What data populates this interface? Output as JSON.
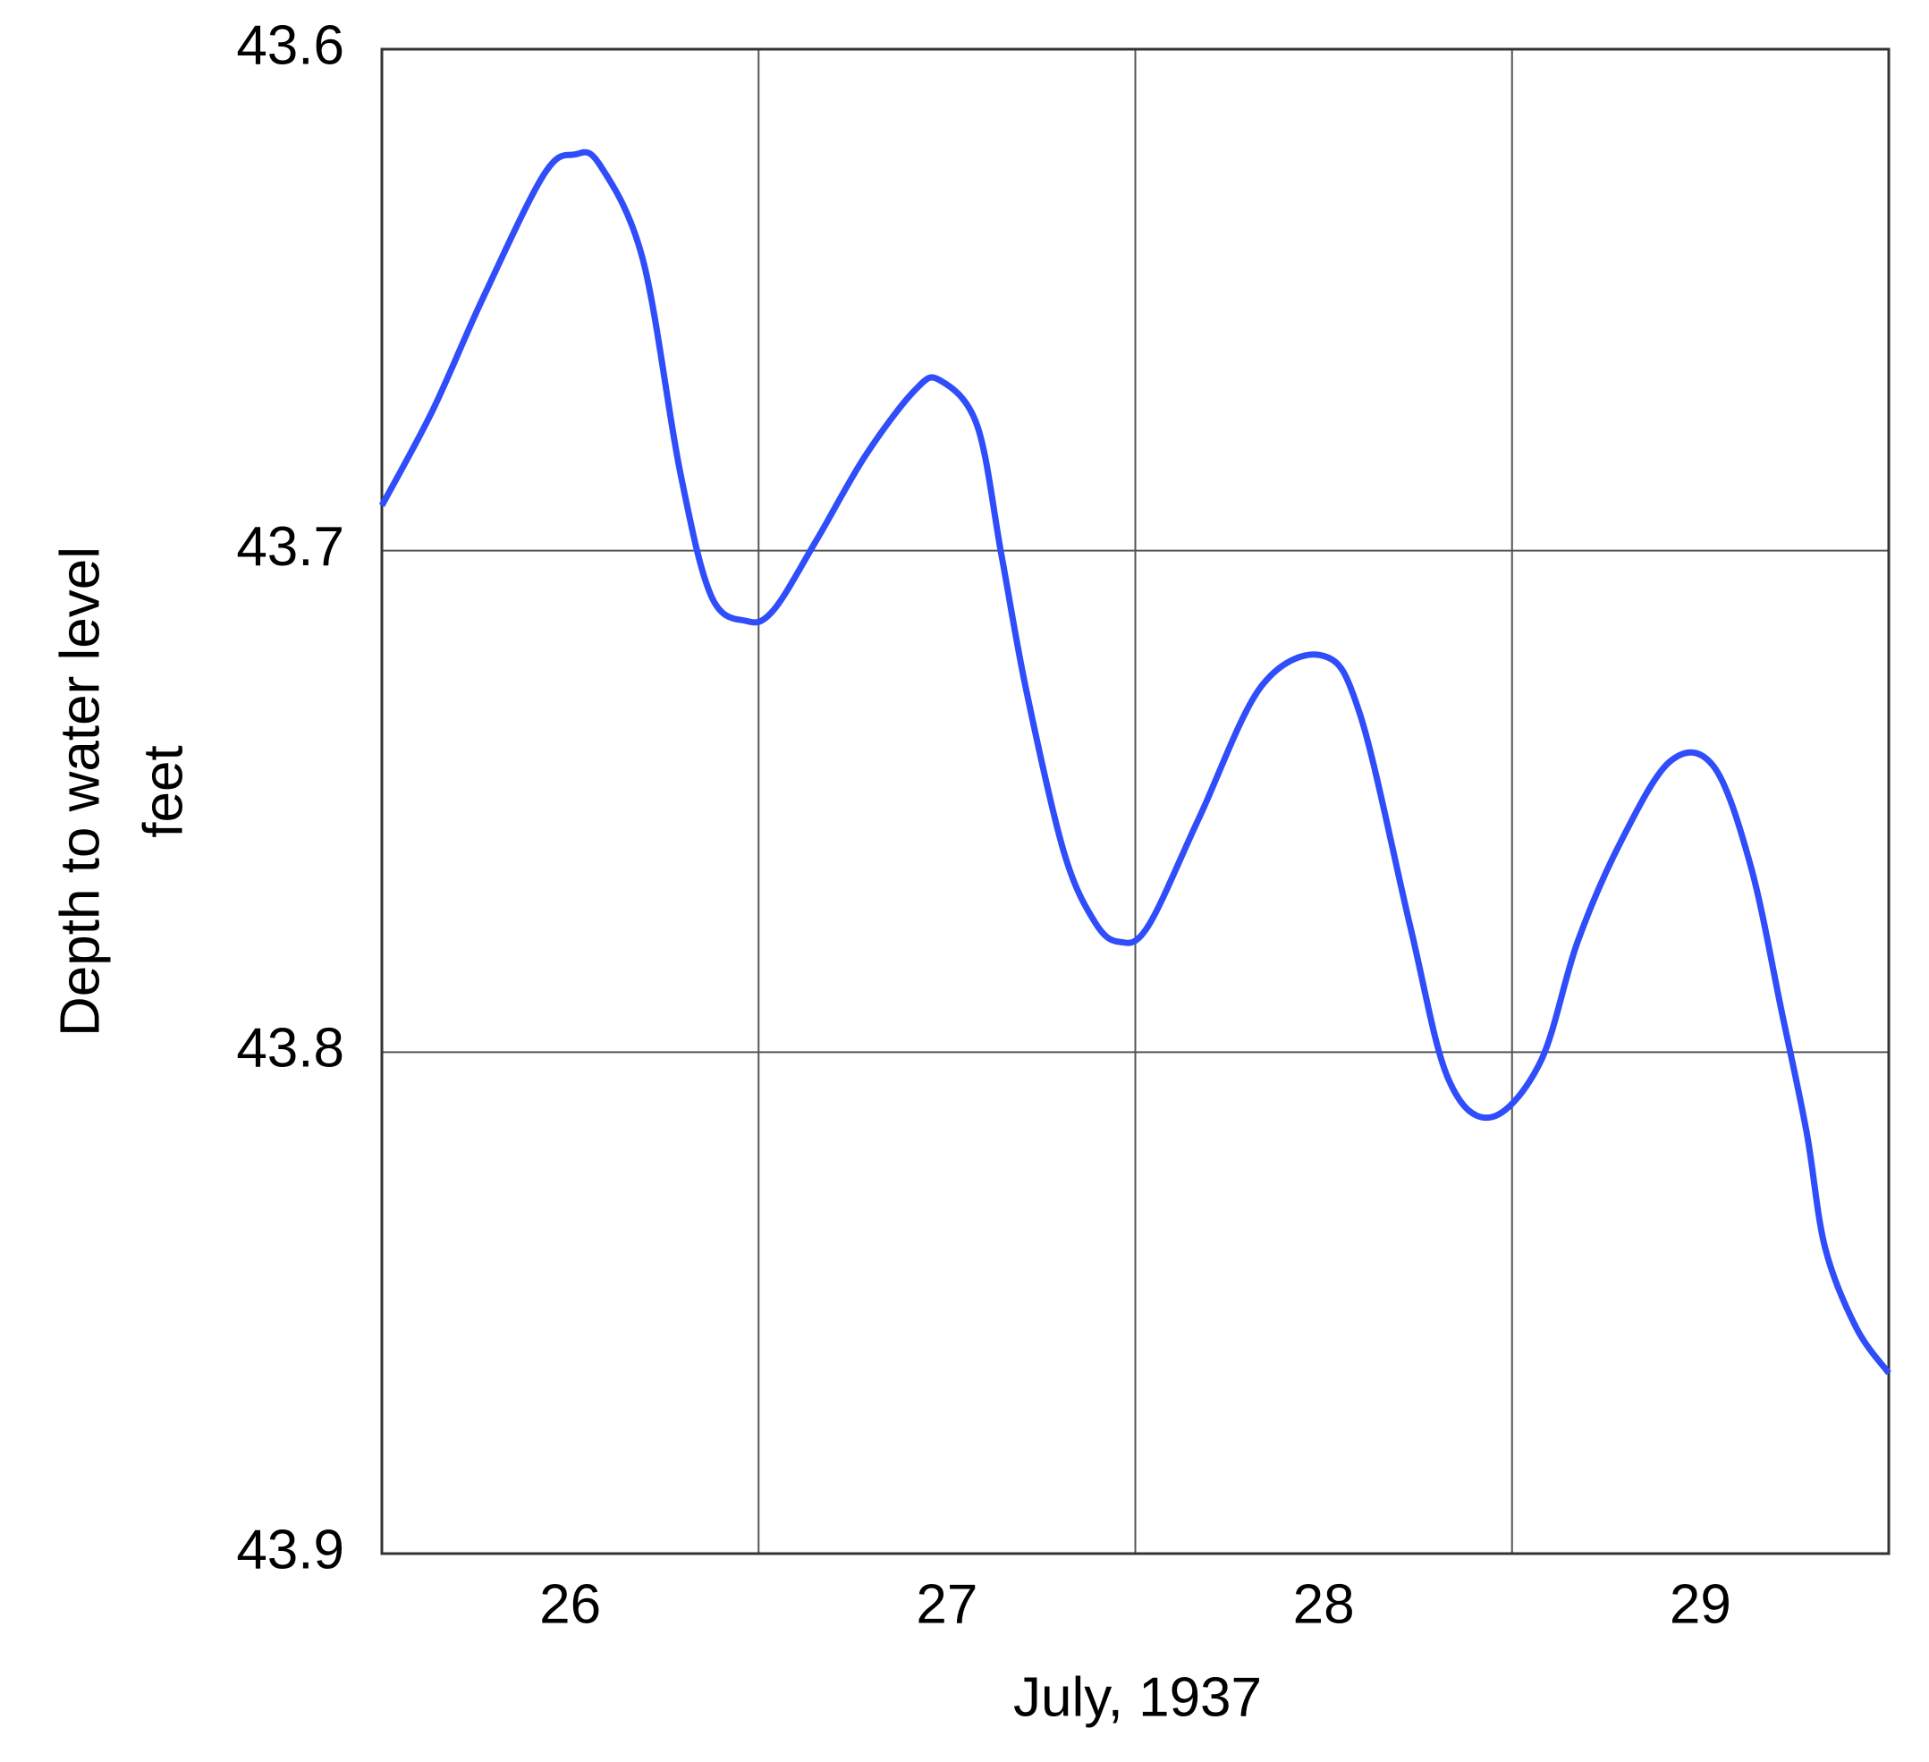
{
  "chart_data": {
    "type": "line",
    "xlabel": "July, 1937",
    "ylabel": [
      "Depth to water level",
      "feet"
    ],
    "x": [
      26.0,
      26.135,
      26.266,
      26.43,
      26.512,
      26.578,
      26.693,
      26.791,
      26.874,
      26.966,
      27.038,
      27.153,
      27.284,
      27.415,
      27.481,
      27.58,
      27.645,
      27.711,
      27.81,
      27.892,
      27.957,
      28.033,
      28.171,
      28.335,
      28.5,
      28.598,
      28.73,
      28.829,
      28.943,
      29.075,
      29.174,
      29.289,
      29.42,
      29.535,
      29.634,
      29.716,
      29.782,
      29.831,
      29.914,
      30.0
    ],
    "series": [
      {
        "color": "#2f4dfa",
        "values": [
          43.691,
          43.672,
          43.65,
          43.625,
          43.621,
          43.623,
          43.642,
          43.684,
          43.709,
          43.714,
          43.712,
          43.698,
          43.681,
          43.668,
          43.666,
          43.675,
          43.701,
          43.728,
          43.76,
          43.774,
          43.778,
          43.775,
          43.753,
          43.727,
          43.721,
          43.733,
          43.775,
          43.805,
          43.813,
          43.802,
          43.778,
          43.758,
          43.742,
          43.743,
          43.763,
          43.792,
          43.816,
          43.839,
          43.855,
          43.864
        ]
      }
    ],
    "xlim": [
      26,
      30
    ],
    "xticks": [
      {
        "value": 26.5,
        "label": "26"
      },
      {
        "value": 27.5,
        "label": "27"
      },
      {
        "value": 28.5,
        "label": "28"
      },
      {
        "value": 29.5,
        "label": "29"
      }
    ],
    "xgrid": [
      27,
      28,
      29
    ],
    "ylim": [
      43.6,
      43.9
    ],
    "yinverted": true,
    "yticks": [
      43.6,
      43.7,
      43.8,
      43.9
    ],
    "grid": true
  }
}
